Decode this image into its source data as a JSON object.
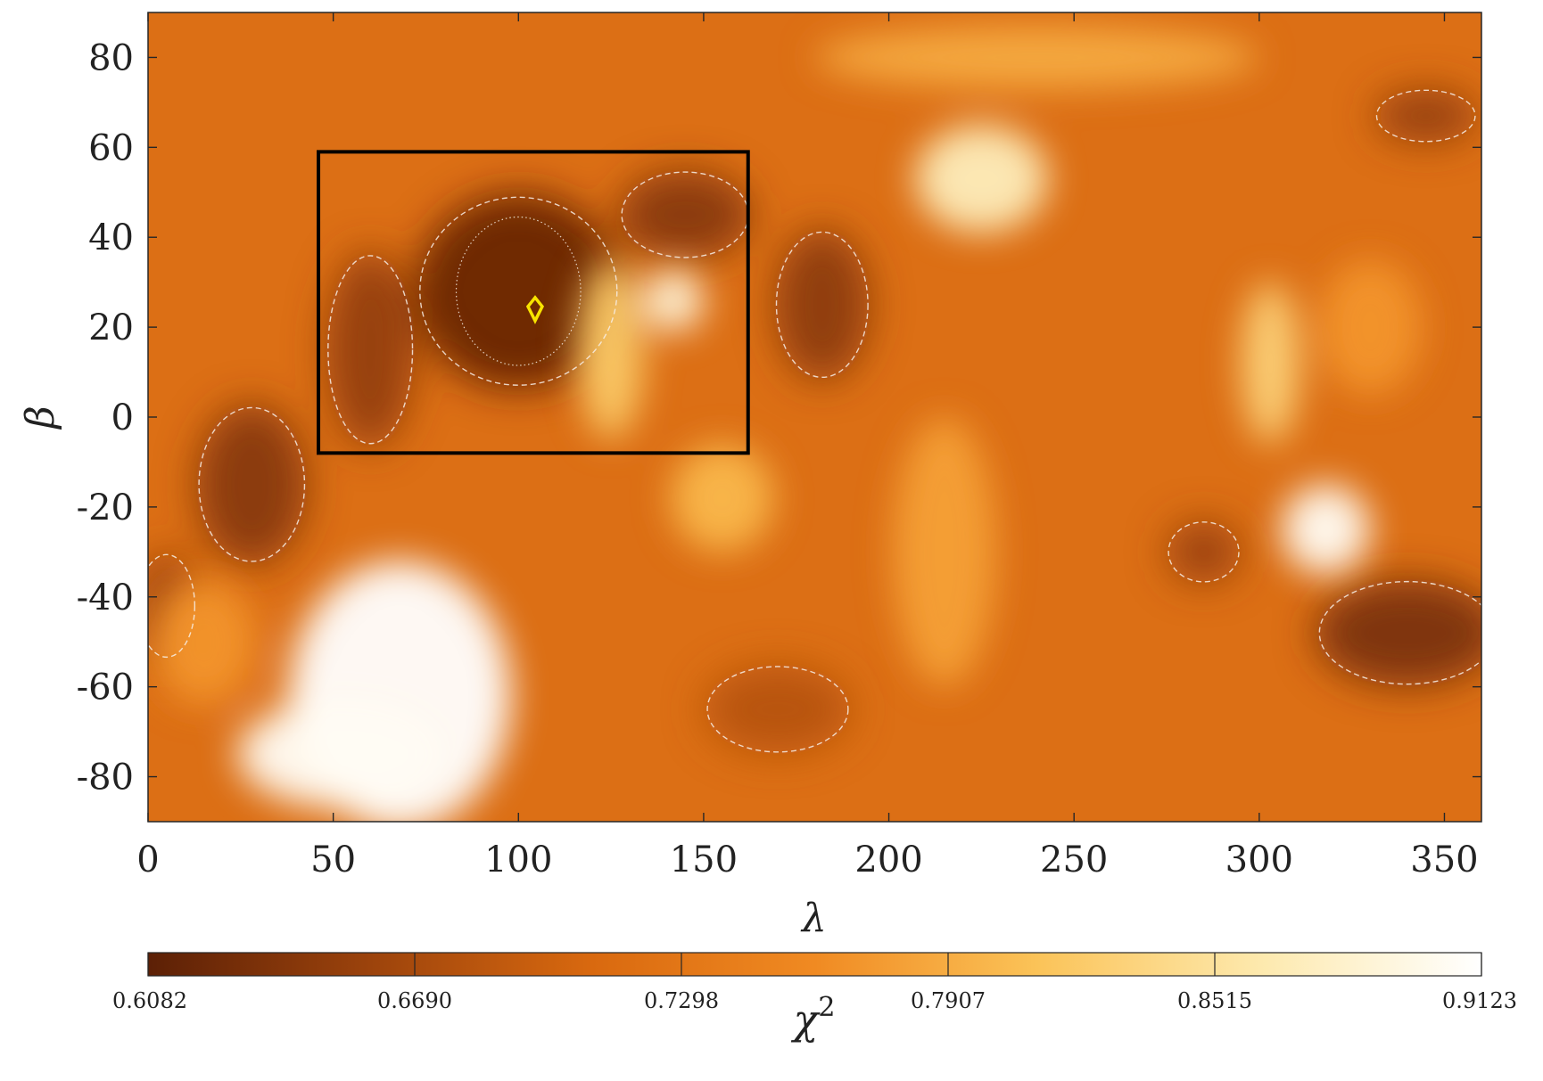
{
  "chart_data": {
    "type": "heatmap",
    "title": "",
    "xlabel": "λ",
    "ylabel": "β",
    "xlim": [
      0,
      360
    ],
    "ylim": [
      -90,
      90
    ],
    "x_ticks": [
      0,
      50,
      100,
      150,
      200,
      250,
      300,
      350
    ],
    "y_ticks": [
      80,
      60,
      40,
      20,
      0,
      -20,
      -40,
      -60,
      -80
    ],
    "y_tick_labels": [
      "80",
      "60",
      "40",
      "20",
      "0",
      "-20",
      "-40",
      "-60",
      "-80"
    ],
    "colorbar": {
      "label": "χ",
      "label_superscript": "2",
      "min": 0.6082,
      "max": 0.9123,
      "ticks": [
        "0.6082",
        "0.6690",
        "0.7298",
        "0.7907",
        "0.8515",
        "0.9123"
      ],
      "colors": [
        "#5c2006",
        "#9c430c",
        "#d9690f",
        "#f08a22",
        "#fbc358",
        "#fde9ad",
        "#ffffff"
      ]
    },
    "highlight_box": {
      "lambda": [
        46,
        162
      ],
      "beta": [
        -8,
        59
      ]
    },
    "minimum_marker": {
      "lambda": 104.5,
      "beta": 24,
      "color": "#f7e400"
    },
    "bright_regions": [
      {
        "lambda": 68,
        "beta": -62,
        "rl": 30,
        "rb": 30,
        "value": 0.912
      },
      {
        "lambda": 52,
        "beta": -75,
        "rl": 28,
        "rb": 12,
        "value": 0.905
      },
      {
        "lambda": 225,
        "beta": 53,
        "rl": 18,
        "rb": 12,
        "value": 0.87
      },
      {
        "lambda": 142,
        "beta": 26,
        "rl": 8,
        "rb": 7,
        "value": 0.89
      },
      {
        "lambda": 318,
        "beta": -25,
        "rl": 12,
        "rb": 10,
        "value": 0.905
      },
      {
        "lambda": 303,
        "beta": 12,
        "rl": 8,
        "rb": 18,
        "value": 0.83
      },
      {
        "lambda": 125,
        "beta": 15,
        "rl": 9,
        "rb": 20,
        "value": 0.82
      },
      {
        "lambda": 155,
        "beta": -18,
        "rl": 14,
        "rb": 12,
        "value": 0.8
      },
      {
        "lambda": 215,
        "beta": -30,
        "rl": 14,
        "rb": 30,
        "value": 0.78
      },
      {
        "lambda": 240,
        "beta": 80,
        "rl": 60,
        "rb": 7,
        "value": 0.79
      },
      {
        "lambda": 15,
        "beta": -50,
        "rl": 14,
        "rb": 14,
        "value": 0.77
      },
      {
        "lambda": 330,
        "beta": 20,
        "rl": 14,
        "rb": 15,
        "value": 0.77
      }
    ],
    "dark_regions": [
      {
        "lambda": 100,
        "beta": 28,
        "rl": 28,
        "rb": 22,
        "value": 0.615
      },
      {
        "lambda": 145,
        "beta": 45,
        "rl": 18,
        "rb": 10,
        "value": 0.64
      },
      {
        "lambda": 28,
        "beta": -15,
        "rl": 15,
        "rb": 18,
        "value": 0.64
      },
      {
        "lambda": 60,
        "beta": 15,
        "rl": 12,
        "rb": 22,
        "value": 0.65
      },
      {
        "lambda": 182,
        "beta": 25,
        "rl": 13,
        "rb": 17,
        "value": 0.645
      },
      {
        "lambda": 340,
        "beta": -48,
        "rl": 25,
        "rb": 12,
        "value": 0.63
      },
      {
        "lambda": 345,
        "beta": 67,
        "rl": 14,
        "rb": 6,
        "value": 0.65
      },
      {
        "lambda": 285,
        "beta": -30,
        "rl": 10,
        "rb": 7,
        "value": 0.655
      },
      {
        "lambda": 5,
        "beta": -42,
        "rl": 8,
        "rb": 12,
        "value": 0.66
      },
      {
        "lambda": 170,
        "beta": -65,
        "rl": 20,
        "rb": 10,
        "value": 0.68
      }
    ]
  }
}
